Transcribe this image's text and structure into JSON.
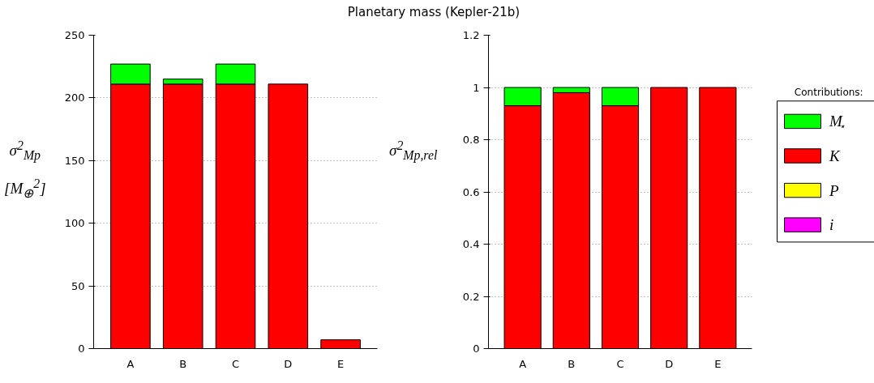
{
  "chart_data": [
    {
      "type": "bar",
      "title": "Planetary mass (Kepler-21b)",
      "ylabel": "σ$^{2}$$_{Mp}$ [M$_{⊕}$$^{2}$]",
      "categories": [
        "A",
        "B",
        "C",
        "D",
        "E"
      ],
      "stacked": true,
      "ylim": [
        0,
        250
      ],
      "yticks": [
        0,
        50,
        100,
        150,
        200,
        250
      ],
      "grid": "y",
      "legend": false,
      "series": [
        {
          "color": "#ff0000",
          "values": [
            211,
            211,
            211,
            211,
            7
          ]
        },
        {
          "color": "#00ff00",
          "values": [
            16,
            4,
            16,
            0,
            0
          ]
        },
        {
          "color": "#ffff00",
          "values": [
            0,
            0,
            0,
            0,
            0
          ]
        },
        {
          "color": "#ff00ff",
          "values": [
            0,
            0,
            0,
            0,
            0
          ]
        }
      ]
    },
    {
      "type": "bar",
      "ylabel": "σ$^{2}$$_{Mp,rel}$",
      "legend_title": "Contributions:",
      "categories": [
        "A",
        "B",
        "C",
        "D",
        "E"
      ],
      "stacked": true,
      "ylim": [
        0,
        1.2
      ],
      "yticks": [
        0,
        0.2,
        0.4,
        0.6,
        0.8,
        1,
        1.2
      ],
      "grid": "y",
      "legend": "right",
      "series": [
        {
          "name": "K",
          "color": "#ff0000",
          "values": [
            0.93,
            0.98,
            0.93,
            1,
            1
          ]
        },
        {
          "name": "M$_{⋆}$",
          "color": "#00ff00",
          "values": [
            0.07,
            0.02,
            0.07,
            0,
            0
          ]
        },
        {
          "name": "P",
          "color": "#ffff00",
          "values": [
            0,
            0,
            0,
            0,
            0
          ]
        },
        {
          "name": "i",
          "color": "#ff00ff",
          "values": [
            0,
            0,
            0,
            0,
            0
          ]
        }
      ]
    }
  ]
}
